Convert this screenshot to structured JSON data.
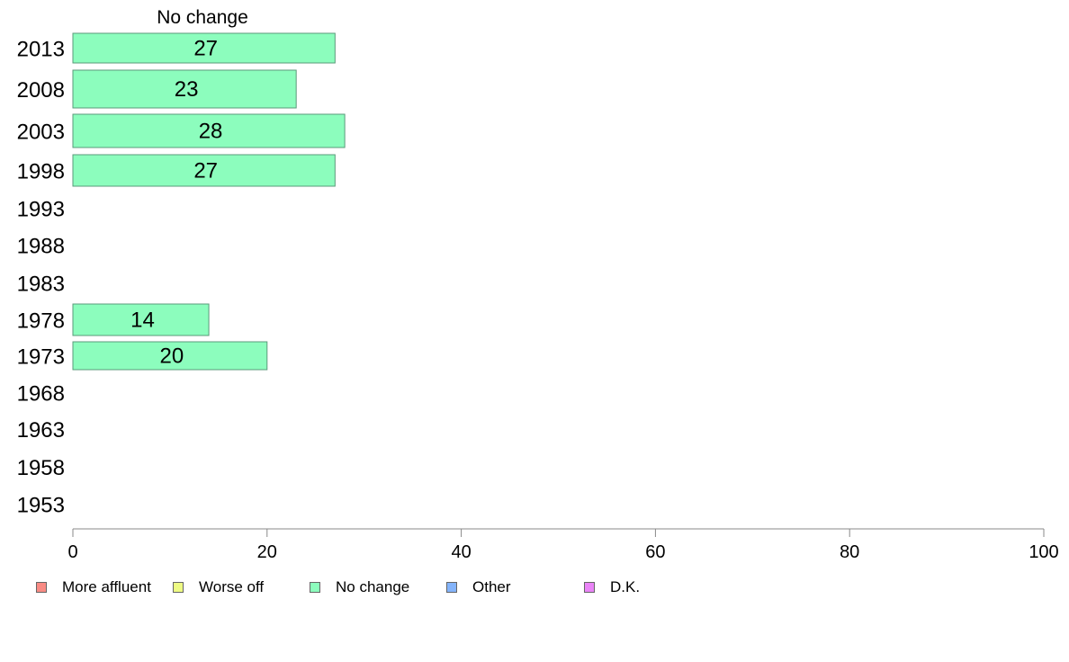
{
  "chart_data": {
    "type": "bar",
    "orientation": "horizontal",
    "stacked": true,
    "header_label": "No change",
    "categories": [
      "2013",
      "2008",
      "2003",
      "1998",
      "1993",
      "1988",
      "1983",
      "1978",
      "1973",
      "1968",
      "1963",
      "1958",
      "1953"
    ],
    "series": [
      {
        "name": "More affluent",
        "color": "#f98b84",
        "values": [
          null,
          null,
          null,
          null,
          null,
          null,
          null,
          null,
          null,
          null,
          null,
          null,
          null
        ]
      },
      {
        "name": "Worse off",
        "color": "#eefb84",
        "values": [
          null,
          null,
          null,
          null,
          null,
          null,
          null,
          null,
          null,
          null,
          null,
          null,
          null
        ]
      },
      {
        "name": "No change",
        "color": "#8cfdbd",
        "values": [
          27,
          23,
          28,
          27,
          null,
          null,
          null,
          14,
          20,
          null,
          null,
          null,
          null
        ]
      },
      {
        "name": "Other",
        "color": "#84b4fb",
        "values": [
          null,
          null,
          null,
          null,
          null,
          null,
          null,
          null,
          null,
          null,
          null,
          null,
          null
        ]
      },
      {
        "name": "D.K.",
        "color": "#ea84f7",
        "values": [
          null,
          null,
          null,
          null,
          null,
          null,
          null,
          null,
          null,
          null,
          null,
          null,
          null
        ]
      }
    ],
    "data_labels": [
      27,
      23,
      28,
      27,
      null,
      null,
      null,
      14,
      20,
      null,
      null,
      null,
      null
    ],
    "xlim": [
      0,
      100
    ],
    "xticks": [
      0,
      20,
      40,
      60,
      80,
      100
    ],
    "grid": false,
    "legend_position": "bottom"
  }
}
